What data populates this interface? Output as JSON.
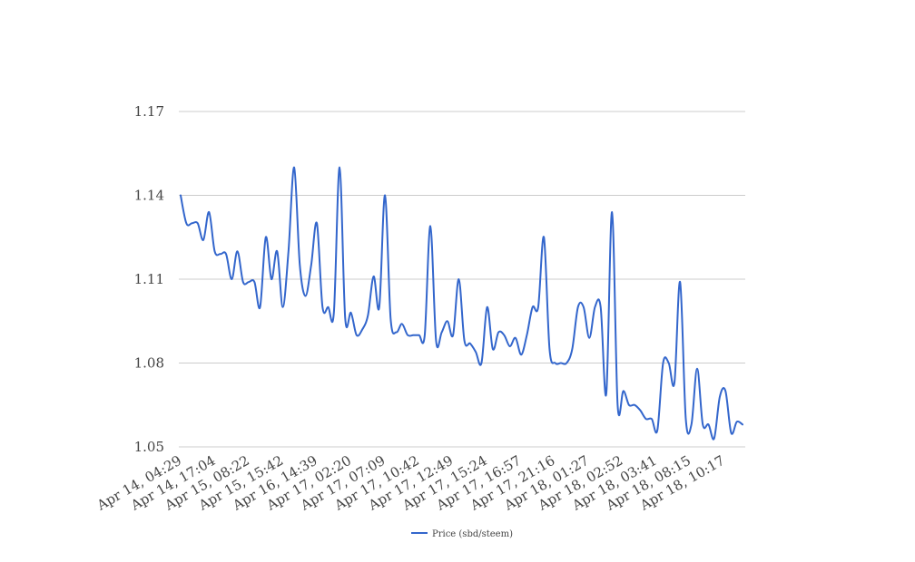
{
  "chart_data": {
    "type": "line",
    "title": "",
    "xlabel": "",
    "ylabel": "",
    "ylim": [
      1.05,
      1.17
    ],
    "yticks": [
      "1.05",
      "1.08",
      "1.11",
      "1.14",
      "1.17"
    ],
    "grid": true,
    "legend_position": "bottom",
    "x_tick_labels": [
      "Apr 14, 04:29",
      "Apr 14, 17:04",
      "Apr 15, 08:22",
      "Apr 15, 15:42",
      "Apr 16, 14:39",
      "Apr 17, 02:20",
      "Apr 17, 07:09",
      "Apr 17, 10:42",
      "Apr 17, 12:49",
      "Apr 17, 15:24",
      "Apr 17, 16:57",
      "Apr 17, 21:16",
      "Apr 18, 01:27",
      "Apr 18, 02:52",
      "Apr 18, 03:41",
      "Apr 18, 08:15",
      "Apr 18, 10:17"
    ],
    "series": [
      {
        "name": "Price (sbd/steem)",
        "color": "#3366cc",
        "values": [
          1.14,
          1.13,
          1.13,
          1.13,
          1.124,
          1.134,
          1.12,
          1.119,
          1.119,
          1.11,
          1.12,
          1.109,
          1.109,
          1.109,
          1.1,
          1.125,
          1.11,
          1.12,
          1.1,
          1.12,
          1.15,
          1.115,
          1.104,
          1.115,
          1.13,
          1.1,
          1.1,
          1.098,
          1.15,
          1.096,
          1.098,
          1.09,
          1.092,
          1.097,
          1.111,
          1.1,
          1.14,
          1.096,
          1.091,
          1.094,
          1.09,
          1.09,
          1.09,
          1.09,
          1.129,
          1.088,
          1.091,
          1.095,
          1.09,
          1.11,
          1.088,
          1.087,
          1.084,
          1.08,
          1.1,
          1.085,
          1.091,
          1.09,
          1.086,
          1.089,
          1.083,
          1.09,
          1.1,
          1.1,
          1.125,
          1.085,
          1.08,
          1.08,
          1.08,
          1.085,
          1.1,
          1.1,
          1.089,
          1.1,
          1.1,
          1.069,
          1.134,
          1.065,
          1.07,
          1.065,
          1.065,
          1.063,
          1.06,
          1.06,
          1.056,
          1.08,
          1.08,
          1.073,
          1.109,
          1.06,
          1.058,
          1.078,
          1.058,
          1.058,
          1.053,
          1.068,
          1.07,
          1.055,
          1.059,
          1.058
        ]
      }
    ]
  }
}
